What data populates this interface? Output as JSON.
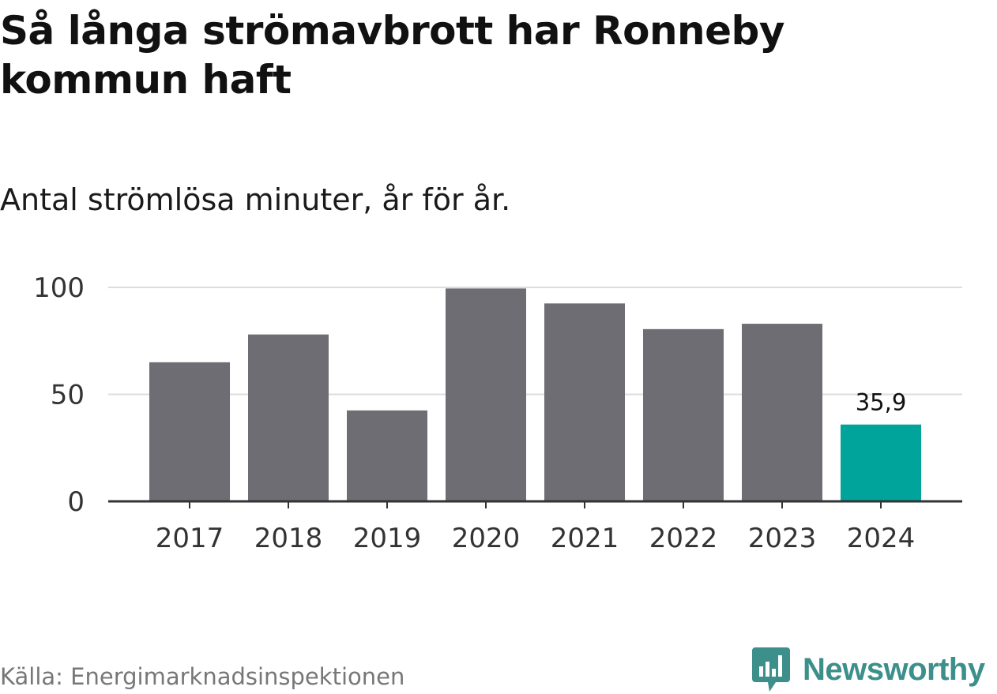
{
  "header": {
    "title": "Så långa strömavbrott har Ronneby kommun haft",
    "subtitle": "Antal strömlösa minuter, år för år."
  },
  "footer": {
    "source": "Källa: Energimarknadsinspektionen",
    "brand": "Newsworthy",
    "brand_icon": "bar-chart-speech-bubble-icon",
    "brand_color": "#3c8f8a"
  },
  "chart_data": {
    "type": "bar",
    "categories": [
      "2017",
      "2018",
      "2019",
      "2020",
      "2021",
      "2022",
      "2023",
      "2024"
    ],
    "values": [
      65,
      78,
      42.5,
      99.5,
      92.5,
      80.5,
      83,
      35.9
    ],
    "highlight_index": 7,
    "highlight_label": "35,9",
    "ylim": [
      0,
      100
    ],
    "yticks": [
      0,
      50,
      100
    ],
    "ytick_labels": [
      "0",
      "50",
      "100"
    ],
    "grid": true,
    "colors": {
      "bar": "#6e6d74",
      "highlight": "#00a49a",
      "grid": "#dddddd",
      "axis": "#333333"
    }
  }
}
